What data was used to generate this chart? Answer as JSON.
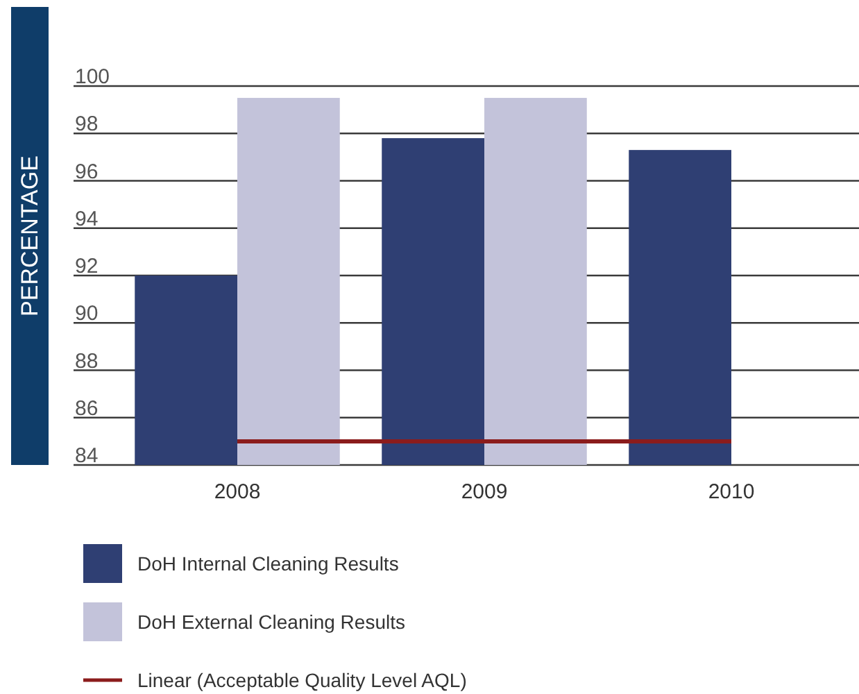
{
  "chart_data": {
    "type": "bar",
    "ylabel": "PERCENTAGE",
    "categories": [
      "2008",
      "2009",
      "2010"
    ],
    "series": [
      {
        "name": "DoH Internal Cleaning Results",
        "color": "#2f3f73",
        "values": [
          92,
          97.8,
          97.3
        ]
      },
      {
        "name": "DoH External Cleaning Results",
        "color": "#c3c3da",
        "values": [
          99.5,
          99.5,
          null
        ]
      },
      {
        "name": "Linear (Acceptable Quality Level AQL)",
        "type": "line",
        "color": "#8b1c1c",
        "values": [
          85,
          85,
          85
        ]
      }
    ],
    "ylim": [
      84,
      100
    ],
    "yticks": [
      84,
      86,
      88,
      90,
      92,
      94,
      96,
      98,
      100
    ],
    "grid": "y",
    "legend": "bottom"
  }
}
